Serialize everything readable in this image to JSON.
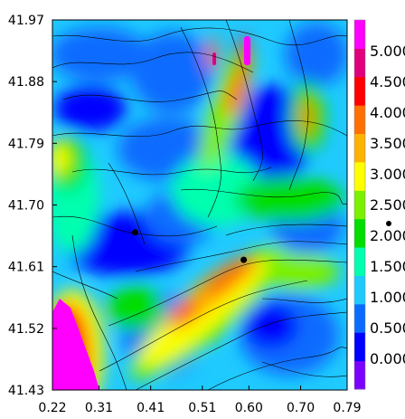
{
  "chart_data": {
    "type": "heatmap",
    "title": "",
    "xlabel": "",
    "ylabel": "",
    "x_ticks": [
      "0.22",
      "0.31",
      "0.41",
      "0.51",
      "0.60",
      "0.70",
      "0.79"
    ],
    "y_ticks": [
      "41.97",
      "41.88",
      "41.79",
      "41.70",
      "41.61",
      "41.52",
      "41.43"
    ],
    "xlim": [
      0.22,
      0.79
    ],
    "ylim": [
      41.43,
      41.97
    ],
    "grid": false,
    "colorbar": {
      "placement": "right",
      "range": [
        -0.5,
        5.5
      ],
      "labels": [
        "0.000",
        "0.500",
        "1.000",
        "1.500",
        "2.000",
        "2.500",
        "3.000",
        "3.500",
        "4.000",
        "4.500",
        "5.000"
      ],
      "colors": [
        "#7b00ff",
        "#0000ff",
        "#0a6cff",
        "#1fcaff",
        "#00ffae",
        "#00dd00",
        "#7bf000",
        "#ffff00",
        "#ffb300",
        "#ff7000",
        "#ff0000",
        "#e0007b",
        "#ff00ff"
      ]
    },
    "markers": [
      {
        "x": 0.38,
        "y": 41.66
      },
      {
        "x": 0.59,
        "y": 41.62
      }
    ],
    "field_features": [
      {
        "type": "high",
        "label": "band from lower-centre to right-centre",
        "value": 4.0
      },
      {
        "type": "max",
        "label": "lower-left corner",
        "value": 5.2
      },
      {
        "type": "high",
        "label": "upper-centre streaks",
        "value": 4.5
      },
      {
        "type": "low",
        "label": "centre-left trough",
        "value": 0.3
      }
    ]
  },
  "extra_marker": {
    "visible": true
  }
}
